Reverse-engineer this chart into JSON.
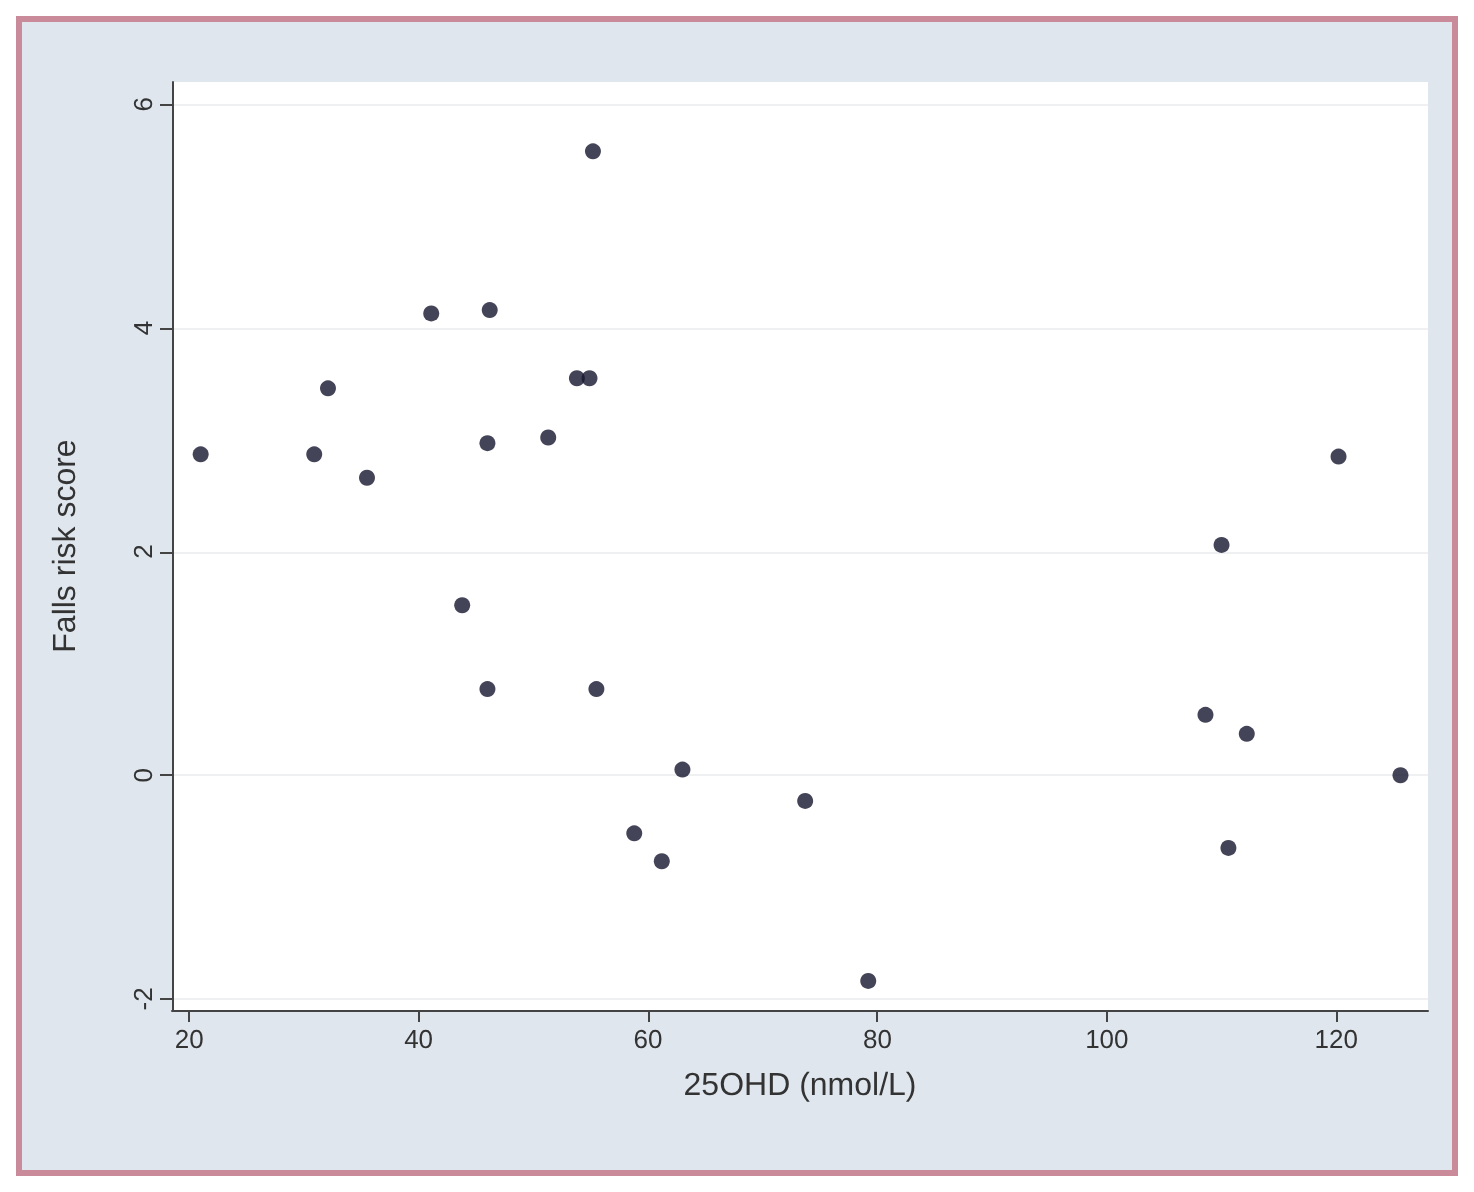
{
  "chart_data": {
    "type": "scatter",
    "xlabel": "25OHD (nmol/L)",
    "ylabel": "Falls risk score",
    "x": [
      21,
      30.9,
      32.1,
      35.5,
      41.1,
      46.2,
      46.0,
      51.3,
      53.8,
      54.9,
      55.2,
      43.8,
      46.0,
      55.5,
      63.0,
      58.8,
      61.2,
      73.7,
      79.2,
      110.0,
      108.6,
      112.2,
      110.6,
      120.2,
      125.6
    ],
    "series": [
      {
        "color": "#15152e",
        "values": [
          2.87,
          2.87,
          3.46,
          2.66,
          4.13,
          4.16,
          2.97,
          3.02,
          3.55,
          3.55,
          5.58,
          1.52,
          0.77,
          0.77,
          0.05,
          -0.52,
          -0.77,
          -0.23,
          -1.84,
          2.06,
          0.54,
          0.37,
          -0.65,
          2.85,
          0.0
        ]
      }
    ],
    "xlim": [
      18.5,
      128
    ],
    "xticks": [
      20,
      40,
      60,
      80,
      100,
      120
    ],
    "ylim": [
      -2.1,
      6.2
    ],
    "yticks": [
      -2,
      0,
      2,
      4,
      6
    ],
    "grid": "y",
    "marker": "circle"
  }
}
